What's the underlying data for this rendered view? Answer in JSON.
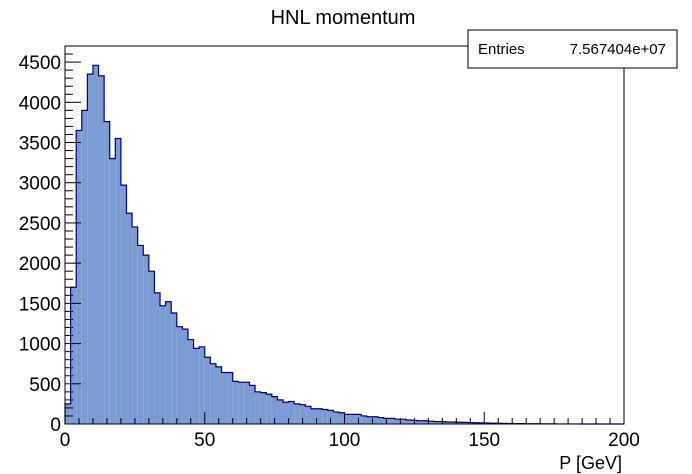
{
  "chart_data": {
    "type": "bar",
    "title": "HNL momentum",
    "xlabel": "P [GeV]",
    "ylabel": "",
    "xlim": [
      0,
      200
    ],
    "ylim": [
      0,
      4700
    ],
    "x_ticks": [
      "0",
      "50",
      "100",
      "150",
      "200"
    ],
    "y_ticks": [
      "0",
      "500",
      "1000",
      "1500",
      "2000",
      "2500",
      "3000",
      "3500",
      "4000",
      "4500"
    ],
    "bin_width": 2,
    "values": [
      250,
      1700,
      3650,
      3900,
      4350,
      4460,
      4330,
      3760,
      3300,
      3550,
      2970,
      2620,
      2450,
      2220,
      2100,
      1900,
      1630,
      1470,
      1520,
      1380,
      1210,
      1180,
      1050,
      940,
      960,
      830,
      750,
      710,
      640,
      640,
      530,
      520,
      520,
      480,
      400,
      390,
      370,
      340,
      300,
      270,
      280,
      250,
      240,
      220,
      190,
      190,
      180,
      170,
      150,
      140,
      120,
      120,
      120,
      100,
      90,
      90,
      80,
      70,
      70,
      60,
      60,
      50,
      45,
      40,
      40,
      35,
      30,
      30,
      25,
      25,
      22,
      20,
      18,
      16,
      14,
      12,
      10,
      10,
      8,
      6,
      5,
      5,
      4,
      3,
      3,
      2,
      2,
      2,
      1,
      1,
      1,
      1,
      0,
      0,
      0,
      0,
      0,
      0,
      0,
      0
    ],
    "fill_color": "#7b9bd3",
    "line_color": "#00007a",
    "stats": {
      "label": "Entries",
      "value": "7.567404e+07"
    },
    "grid": false,
    "legend": "none"
  }
}
